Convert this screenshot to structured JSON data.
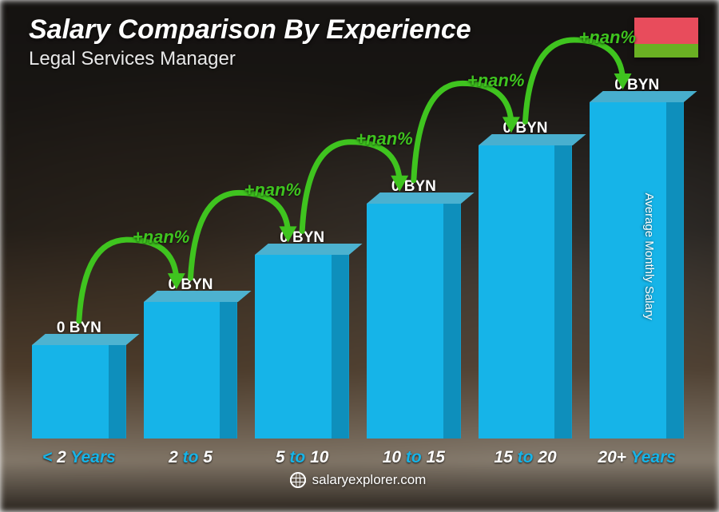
{
  "title": "Salary Comparison By Experience",
  "subtitle": "Legal Services Manager",
  "yaxis_label": "Average Monthly Salary",
  "footer": "salaryexplorer.com",
  "flag_colors": {
    "top": "#e84c5c",
    "bottom": "#6ab023"
  },
  "chart": {
    "type": "bar",
    "bar_fill": "#16b4e8",
    "bar_top": "#4fc9ef",
    "bar_side": "#0e8fbc",
    "arrow_color": "#3fc41f",
    "delta_color": "#3fc41f",
    "value_color": "#ffffff",
    "xlabel_accent": "#16b4e8",
    "xlabel_white": "#ffffff",
    "title_fontsize": 34,
    "subtitle_fontsize": 24,
    "value_fontsize": 19,
    "delta_fontsize": 22,
    "xlabel_fontsize": 21,
    "yaxis_fontsize": 15,
    "footer_fontsize": 17,
    "background_overlay": "rgba(10,10,10,0.35)",
    "bar_heights_pct": [
      24,
      35,
      47,
      60,
      75,
      90
    ],
    "categories": [
      {
        "pre": "< ",
        "num": "2",
        "post": " Years"
      },
      {
        "pre": "",
        "num": "2",
        "mid": " to ",
        "num2": "5",
        "post": ""
      },
      {
        "pre": "",
        "num": "5",
        "mid": " to ",
        "num2": "10",
        "post": ""
      },
      {
        "pre": "",
        "num": "10",
        "mid": " to ",
        "num2": "15",
        "post": ""
      },
      {
        "pre": "",
        "num": "15",
        "mid": " to ",
        "num2": "20",
        "post": ""
      },
      {
        "pre": "",
        "num": "20+",
        "post": " Years"
      }
    ],
    "values": [
      "0 BYN",
      "0 BYN",
      "0 BYN",
      "0 BYN",
      "0 BYN",
      "0 BYN"
    ],
    "deltas": [
      "+nan%",
      "+nan%",
      "+nan%",
      "+nan%",
      "+nan%"
    ]
  }
}
